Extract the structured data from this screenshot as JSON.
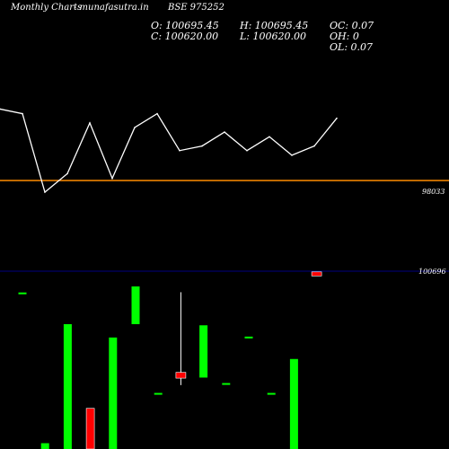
{
  "header": {
    "brand": "Monthly Charts",
    "site": "- munafasutra.in",
    "symbol": "BSE 975252",
    "ohlc": {
      "o": "O: 100695.45",
      "h": "H: 100695.45",
      "c": "C: 100620.00",
      "l": "L: 100620.00",
      "oc": "OC: 0.07",
      "oh": "OH: 0",
      "ol": "OL: 0.07"
    }
  },
  "chart_data": [
    {
      "type": "line",
      "series": [
        {
          "values": [
            100,
            99,
            82,
            86,
            97,
            85,
            96,
            99,
            91,
            92,
            95,
            91,
            94,
            90,
            92,
            98
          ]
        }
      ],
      "reference_line": {
        "value": 98033,
        "label": "98033"
      },
      "ylim": [
        75,
        110
      ],
      "colors": {
        "line": "#ffffff",
        "reference": "#ff8c00"
      }
    },
    {
      "type": "bar",
      "reference_line": {
        "value": 100696,
        "label": "100696"
      },
      "ylim": [
        0,
        30
      ],
      "bars": [
        {
          "color": "up",
          "open": 26.8,
          "close": 26.8,
          "high": 26.8,
          "low": 26.8
        },
        {
          "color": "up",
          "open": 0,
          "close": 1,
          "high": 1,
          "low": 0
        },
        {
          "color": "up",
          "open": 0,
          "close": 21.5,
          "high": 21.5,
          "low": 0
        },
        {
          "color": "down",
          "open": 7,
          "close": 0,
          "high": 7,
          "low": 0
        },
        {
          "color": "up",
          "open": 0,
          "close": 19.2,
          "high": 19.2,
          "low": 0
        },
        {
          "color": "up",
          "open": 21.5,
          "close": 28,
          "high": 28,
          "low": 21.5
        },
        {
          "color": "up",
          "open": 9.5,
          "close": 9.5,
          "high": 9.5,
          "low": 9.5
        },
        {
          "color": "down",
          "open": 13.2,
          "close": 12.2,
          "high": 27,
          "low": 11
        },
        {
          "color": "up",
          "open": 12.3,
          "close": 21.3,
          "high": 21.3,
          "low": 12.3
        },
        {
          "color": "up",
          "open": 11.2,
          "close": 11.2,
          "high": 11.2,
          "low": 11.2
        },
        {
          "color": "up",
          "open": 19.2,
          "close": 19.2,
          "high": 19.2,
          "low": 19.2
        },
        {
          "color": "up",
          "open": 9.5,
          "close": 9.5,
          "high": 9.5,
          "low": 9.5
        },
        {
          "color": "up",
          "open": 0,
          "close": 15.5,
          "high": 15.5,
          "low": 0
        },
        {
          "color": "down",
          "open": 30.5,
          "close": 29.8,
          "high": 30.5,
          "low": 29.8
        }
      ],
      "colors": {
        "up": "#00ff00",
        "down": "#ff0000",
        "reference": "#000080",
        "wick": "#ffffff"
      }
    }
  ]
}
